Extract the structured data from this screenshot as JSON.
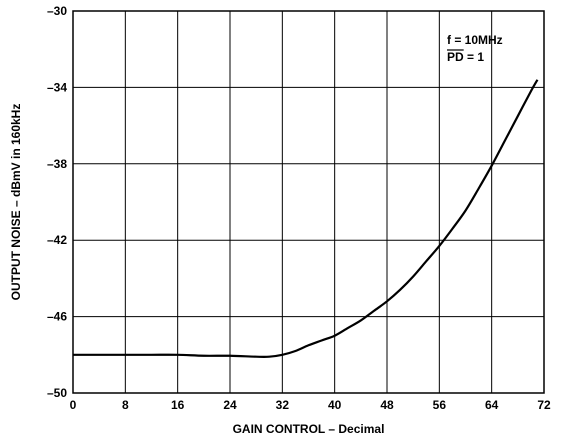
{
  "chart_data": {
    "type": "line",
    "title": "",
    "xlabel": "GAIN CONTROL – Decimal",
    "ylabel": "OUTPUT NOISE – dBmV in 160kHz",
    "xlim": [
      0,
      72
    ],
    "ylim": [
      -50,
      -30
    ],
    "x_ticks": [
      0,
      8,
      16,
      24,
      32,
      40,
      48,
      56,
      64,
      72
    ],
    "y_ticks": [
      -50,
      -46,
      -42,
      -38,
      -34,
      -30
    ],
    "x_tick_labels": [
      "0",
      "8",
      "16",
      "24",
      "32",
      "40",
      "48",
      "56",
      "64",
      "72"
    ],
    "y_tick_labels": [
      "–50",
      "–46",
      "–42",
      "–38",
      "–34",
      "–30"
    ],
    "grid": true,
    "annotations": [
      {
        "text": "f = 10MHz",
        "position": "top-right"
      },
      {
        "text": "PD = 1",
        "position": "top-right",
        "overline_chars": 2
      }
    ],
    "series": [
      {
        "color": "#000000",
        "x": [
          0,
          4,
          8,
          12,
          16,
          20,
          24,
          28,
          30,
          32,
          34,
          36,
          38,
          40,
          42,
          44,
          46,
          48,
          50,
          52,
          54,
          56,
          58,
          60,
          62,
          64,
          66,
          68,
          70,
          71
        ],
        "y": [
          -48.0,
          -48.0,
          -48.0,
          -48.0,
          -48.0,
          -48.05,
          -48.05,
          -48.1,
          -48.1,
          -48.0,
          -47.8,
          -47.5,
          -47.25,
          -47.0,
          -46.6,
          -46.2,
          -45.7,
          -45.2,
          -44.6,
          -43.9,
          -43.1,
          -42.3,
          -41.4,
          -40.45,
          -39.3,
          -38.1,
          -36.8,
          -35.5,
          -34.2,
          -33.6
        ]
      }
    ]
  }
}
